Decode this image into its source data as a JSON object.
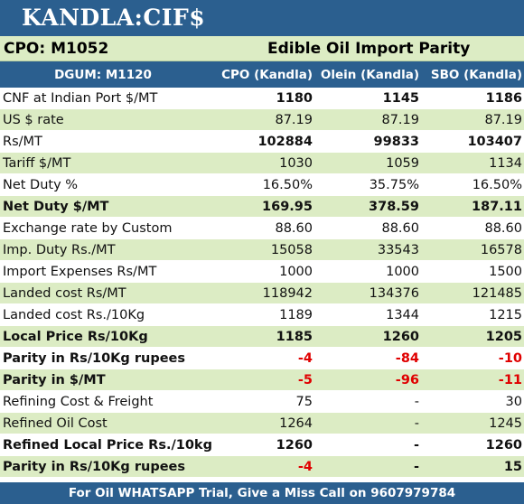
{
  "header": {
    "title": "KANDLA:CIF$",
    "left_label": "CPO: M1052",
    "right_label": "Edible Oil Import Parity"
  },
  "columns": [
    "DGUM: M1120",
    "CPO (Kandla)",
    "Olein (Kandla)",
    "SBO (Kandla)"
  ],
  "rows": [
    {
      "label": "CNF at Indian Port $/MT",
      "values": [
        "1180",
        "1145",
        "1186"
      ],
      "bold_values": true
    },
    {
      "label": "US $ rate",
      "values": [
        "87.19",
        "87.19",
        "87.19"
      ]
    },
    {
      "label": "Rs/MT",
      "values": [
        "102884",
        "99833",
        "103407"
      ],
      "bold_values": true
    },
    {
      "label": "Tariff $/MT",
      "values": [
        "1030",
        "1059",
        "1134"
      ]
    },
    {
      "label": "Net Duty %",
      "values": [
        "16.50%",
        "35.75%",
        "16.50%"
      ]
    },
    {
      "label": "Net Duty $/MT",
      "values": [
        "169.95",
        "378.59",
        "187.11"
      ],
      "bold": true
    },
    {
      "label": "Exchange rate by Custom",
      "values": [
        "88.60",
        "88.60",
        "88.60"
      ]
    },
    {
      "label": "Imp. Duty Rs./MT",
      "values": [
        "15058",
        "33543",
        "16578"
      ]
    },
    {
      "label": "Import Expenses Rs/MT",
      "values": [
        "1000",
        "1000",
        "1500"
      ]
    },
    {
      "label": "Landed cost Rs/MT",
      "values": [
        "118942",
        "134376",
        "121485"
      ]
    },
    {
      "label": "Landed cost Rs./10Kg",
      "values": [
        "1189",
        "1344",
        "1215"
      ]
    },
    {
      "label": "Local Price Rs/10Kg",
      "values": [
        "1185",
        "1260",
        "1205"
      ],
      "bold": true
    },
    {
      "label": "Parity in Rs/10Kg rupees",
      "values": [
        "-4",
        "-84",
        "-10"
      ],
      "bold": true,
      "negative": true
    },
    {
      "label": "Parity in $/MT",
      "values": [
        "-5",
        "-96",
        "-11"
      ],
      "bold": true,
      "negative": true
    },
    {
      "label": "Refining Cost & Freight",
      "values": [
        "75",
        "-",
        "30"
      ]
    },
    {
      "label": "Refined Oil Cost",
      "values": [
        "1264",
        "-",
        "1245"
      ]
    },
    {
      "label": "Refined Local Price Rs./10kg",
      "values": [
        "1260",
        "-",
        "1260"
      ],
      "bold": true
    },
    {
      "label": "Parity in Rs/10Kg rupees",
      "values": [
        "-4",
        "-",
        "15"
      ],
      "bold": true
    }
  ],
  "footer": "For Oil WHATSAPP Trial, Give a Miss Call on 9607979784",
  "colors": {
    "header_blue": "#2b5f8f",
    "row_green": "#dcecc4",
    "negative_red": "#e00000"
  }
}
